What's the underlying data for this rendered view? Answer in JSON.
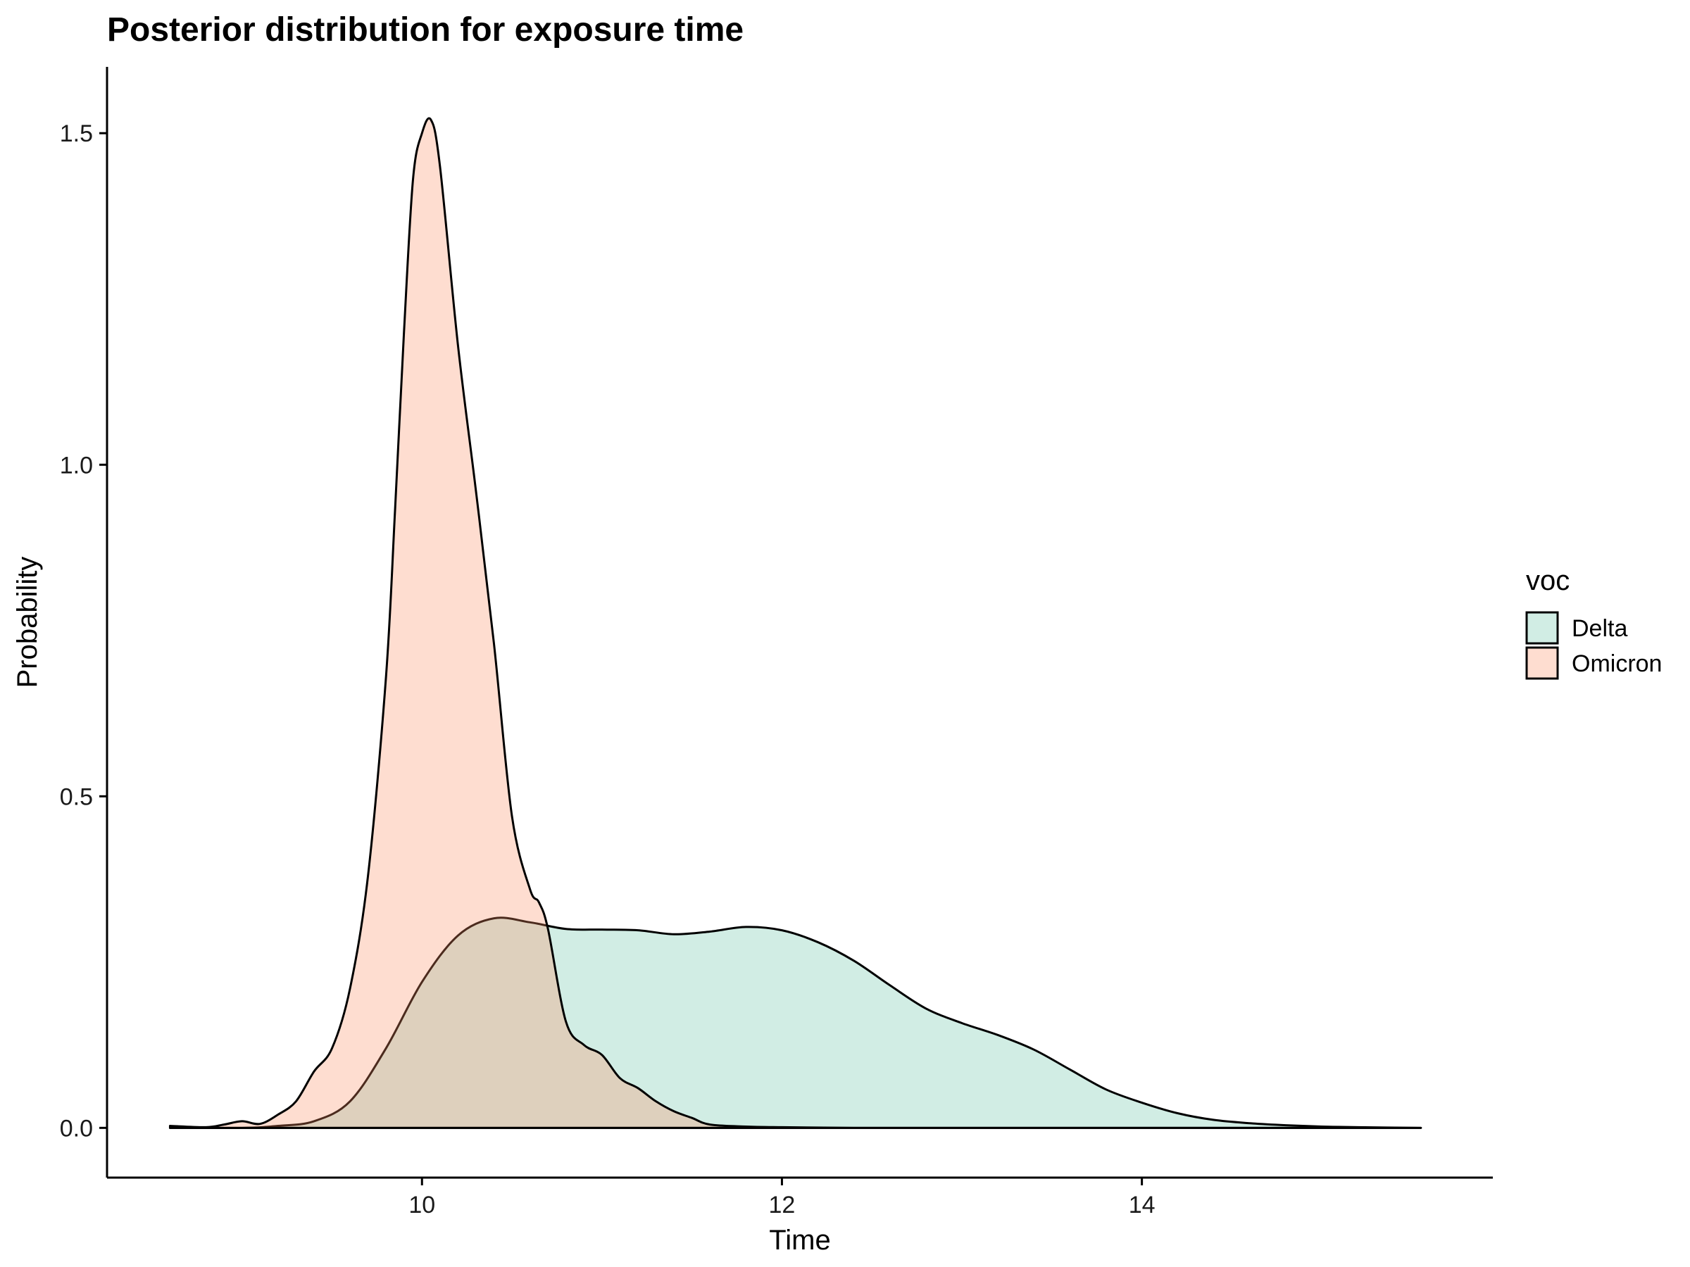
{
  "chart_data": {
    "type": "area",
    "title": "Posterior distribution for exposure time",
    "xlabel": "Time",
    "ylabel": "Probability",
    "xlim": [
      8.25,
      15.95
    ],
    "ylim": [
      -0.075,
      1.6
    ],
    "x_ticks": [
      10,
      12,
      14
    ],
    "x_tick_labels": [
      "10",
      "12",
      "14"
    ],
    "y_ticks": [
      0,
      0.5,
      1,
      1.5
    ],
    "y_tick_labels": [
      "0.0",
      "0.5",
      "1.0",
      "1.5"
    ],
    "grid": false,
    "legend": {
      "title": "voc",
      "placement": "right"
    },
    "alpha": 0.3,
    "series": [
      {
        "name": "Delta",
        "color": "#66C2A5",
        "x": [
          8.6,
          9.0,
          9.2,
          9.4,
          9.6,
          9.8,
          10.0,
          10.2,
          10.4,
          10.6,
          10.8,
          11.0,
          11.2,
          11.4,
          11.6,
          11.8,
          12.0,
          12.2,
          12.4,
          12.6,
          12.8,
          13.0,
          13.2,
          13.4,
          13.6,
          13.8,
          14.0,
          14.2,
          14.4,
          14.6,
          14.8,
          15.0,
          15.2,
          15.55
        ],
        "y": [
          0.0,
          0.0,
          0.003,
          0.01,
          0.04,
          0.12,
          0.22,
          0.29,
          0.316,
          0.31,
          0.3,
          0.299,
          0.298,
          0.292,
          0.296,
          0.303,
          0.298,
          0.28,
          0.252,
          0.215,
          0.18,
          0.158,
          0.14,
          0.118,
          0.088,
          0.058,
          0.038,
          0.022,
          0.012,
          0.007,
          0.004,
          0.002,
          0.001,
          0.0
        ]
      },
      {
        "name": "Omicron",
        "color": "#FC8D62",
        "x": [
          8.6,
          8.8,
          8.9,
          9.0,
          9.1,
          9.2,
          9.3,
          9.4,
          9.5,
          9.6,
          9.7,
          9.8,
          9.85,
          9.9,
          9.95,
          10.0,
          10.05,
          10.1,
          10.2,
          10.3,
          10.4,
          10.5,
          10.6,
          10.65,
          10.7,
          10.8,
          10.9,
          11.0,
          11.1,
          11.2,
          11.3,
          11.4,
          11.5,
          11.6,
          11.8,
          12.0,
          12.4,
          13.0,
          14.0,
          15.55
        ],
        "y": [
          0.003,
          0.001,
          0.005,
          0.01,
          0.006,
          0.02,
          0.04,
          0.085,
          0.12,
          0.21,
          0.38,
          0.68,
          0.93,
          1.2,
          1.43,
          1.5,
          1.52,
          1.45,
          1.18,
          0.96,
          0.73,
          0.47,
          0.36,
          0.34,
          0.3,
          0.16,
          0.125,
          0.11,
          0.075,
          0.06,
          0.04,
          0.025,
          0.015,
          0.005,
          0.002,
          0.001,
          0.0,
          0.0,
          0.0,
          0.0
        ]
      }
    ]
  }
}
